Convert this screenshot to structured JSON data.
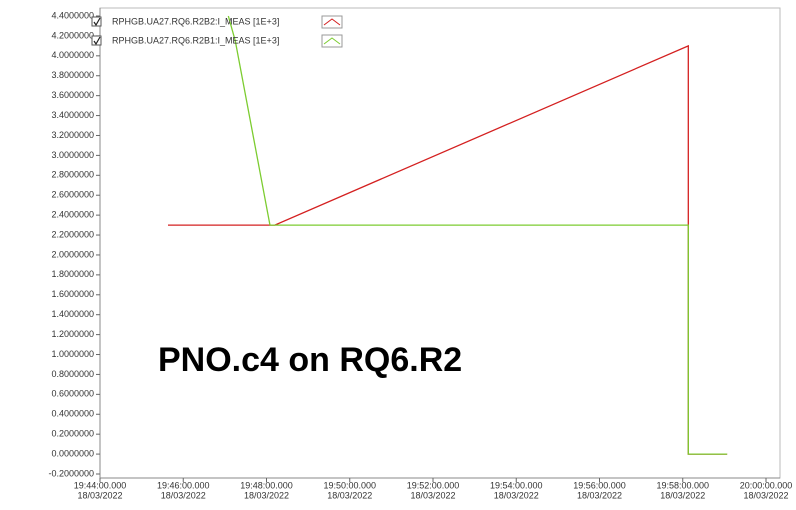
{
  "chart_data": {
    "type": "line",
    "annotation": "PNO.c4 on RQ6.R2",
    "legend": "upper left",
    "series": [
      {
        "name": "RPHGB.UA27.RQ6.R2B2:I_MEAS [1E+3]",
        "color": "#d42020",
        "x": [
          "2022-03-18T19:45:38",
          "2022-03-18T19:48:12",
          "2022-03-18T19:58:08",
          "2022-03-18T19:58:08",
          "2022-03-18T19:59:04"
        ],
        "values": [
          2.3,
          2.3,
          4.1,
          0,
          0
        ]
      },
      {
        "name": "RPHGB.UA27.RQ6.R2B1:I_MEAS [1E+3]",
        "color": "#7ccc30",
        "x": [
          "2022-03-18T19:47:05",
          "2022-03-18T19:47:15",
          "2022-03-18T19:48:05",
          "2022-03-18T19:58:08",
          "2022-03-18T19:58:08",
          "2022-03-18T19:59:04"
        ],
        "values": [
          4.4,
          4.15,
          2.3,
          2.3,
          0,
          0
        ]
      }
    ],
    "xlim": [
      "2022-03-18T19:44:00",
      "2022-03-18T20:00:00"
    ],
    "xticks": [
      {
        "value": "2022-03-18T19:44:00",
        "label": [
          "19:44:00.000",
          "18/03/2022"
        ]
      },
      {
        "value": "2022-03-18T19:46:00",
        "label": [
          "19:46:00.000",
          "18/03/2022"
        ]
      },
      {
        "value": "2022-03-18T19:48:00",
        "label": [
          "19:48:00.000",
          "18/03/2022"
        ]
      },
      {
        "value": "2022-03-18T19:50:00",
        "label": [
          "19:50:00.000",
          "18/03/2022"
        ]
      },
      {
        "value": "2022-03-18T19:52:00",
        "label": [
          "19:52:00.000",
          "18/03/2022"
        ]
      },
      {
        "value": "2022-03-18T19:54:00",
        "label": [
          "19:54:00.000",
          "18/03/2022"
        ]
      },
      {
        "value": "2022-03-18T19:56:00",
        "label": [
          "19:56:00.000",
          "18/03/2022"
        ]
      },
      {
        "value": "2022-03-18T19:58:00",
        "label": [
          "19:58:00.000",
          "18/03/2022"
        ]
      },
      {
        "value": "2022-03-18T20:00:00",
        "label": [
          "20:00:00.000",
          "18/03/2022"
        ]
      }
    ],
    "ylim": [
      -0.2,
      4.4
    ],
    "yticks": [
      {
        "value": 4.4,
        "label": "4.4000000"
      },
      {
        "value": 4.2,
        "label": "4.2000000"
      },
      {
        "value": 4.0,
        "label": "4.0000000"
      },
      {
        "value": 3.8,
        "label": "3.8000000"
      },
      {
        "value": 3.6,
        "label": "3.6000000"
      },
      {
        "value": 3.4,
        "label": "3.4000000"
      },
      {
        "value": 3.2,
        "label": "3.2000000"
      },
      {
        "value": 3.0,
        "label": "3.0000000"
      },
      {
        "value": 2.8,
        "label": "2.8000000"
      },
      {
        "value": 2.6,
        "label": "2.6000000"
      },
      {
        "value": 2.4,
        "label": "2.4000000"
      },
      {
        "value": 2.2,
        "label": "2.2000000"
      },
      {
        "value": 2.0,
        "label": "2.0000000"
      },
      {
        "value": 1.8,
        "label": "1.8000000"
      },
      {
        "value": 1.6,
        "label": "1.6000000"
      },
      {
        "value": 1.4,
        "label": "1.4000000"
      },
      {
        "value": 1.2,
        "label": "1.2000000"
      },
      {
        "value": 1.0,
        "label": "1.0000000"
      },
      {
        "value": 0.8,
        "label": "0.8000000"
      },
      {
        "value": 0.6,
        "label": "0.6000000"
      },
      {
        "value": 0.4,
        "label": "0.4000000"
      },
      {
        "value": 0.2,
        "label": "0.2000000"
      },
      {
        "value": 0.0,
        "label": "0.0000000"
      },
      {
        "value": -0.2,
        "label": "-0.2000000"
      }
    ],
    "grid": false
  }
}
